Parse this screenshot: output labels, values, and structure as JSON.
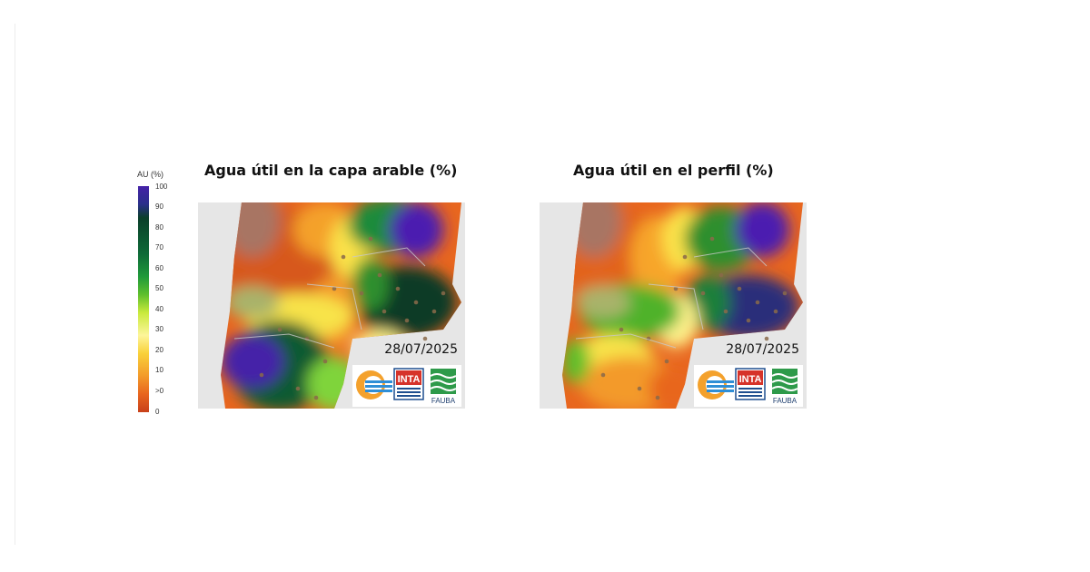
{
  "legend": {
    "title": "AU (%)",
    "ticks": [
      "100",
      "90",
      "80",
      "70",
      "60",
      "50",
      "40",
      "30",
      "20",
      "10",
      ">0",
      "0"
    ],
    "colors": [
      "#c8401a",
      "#e8651e",
      "#f39a2a",
      "#f9d13a",
      "#fdf59a",
      "#c9ea3c",
      "#5fbf2c",
      "#1f9a3a",
      "#0e6a38",
      "#0a3f2a",
      "#1f2870",
      "#4522a8"
    ]
  },
  "maps": [
    {
      "title": "Agua útil en la capa arable (%)",
      "date": "28/07/2025"
    },
    {
      "title": "Agua útil en el perfil (%)",
      "date": "28/07/2025"
    }
  ],
  "logos": {
    "center": "INTA",
    "right": "FAUBA"
  }
}
